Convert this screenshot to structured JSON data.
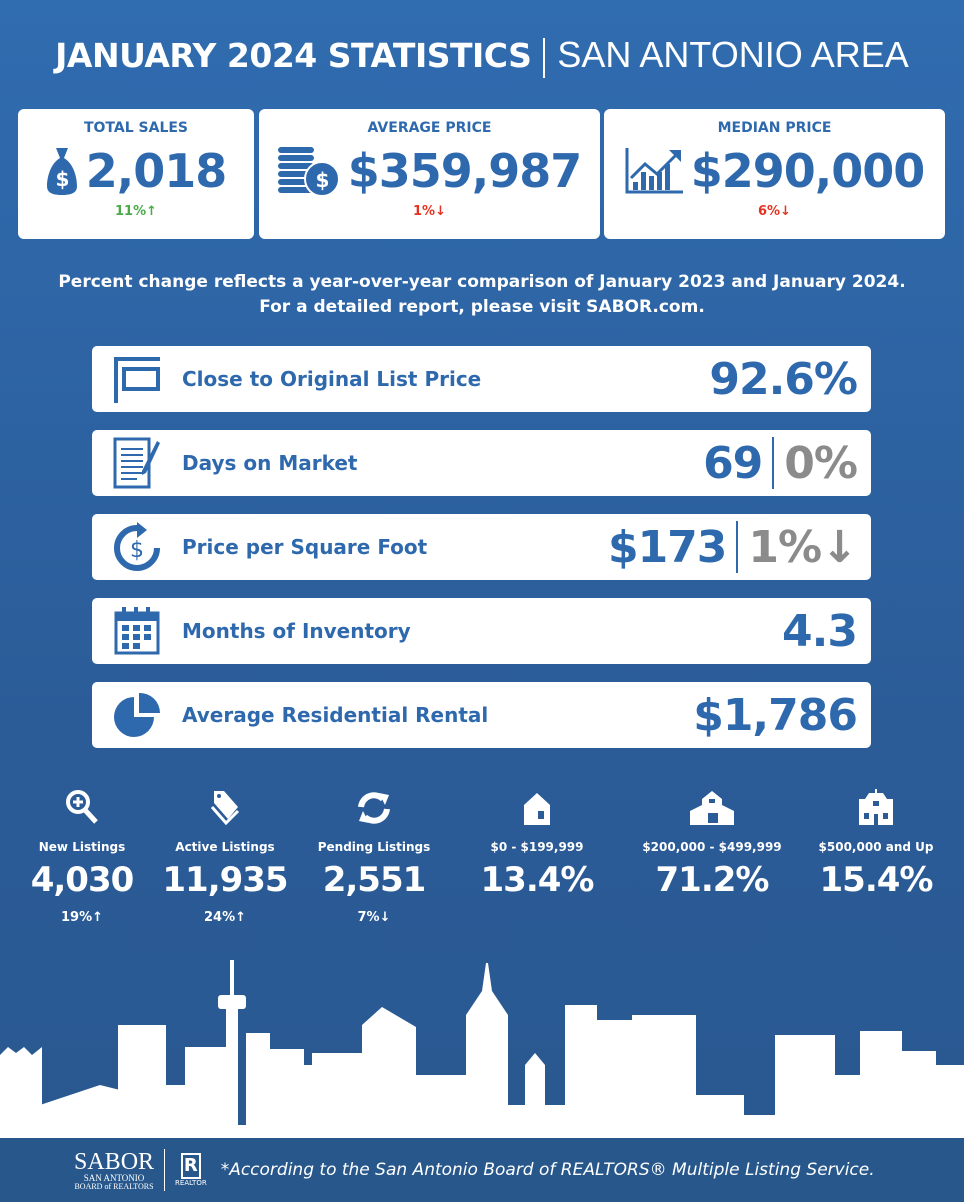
{
  "header": {
    "title": "JANUARY 2024 STATISTICS",
    "subtitle": "SAN ANTONIO AREA"
  },
  "cards": [
    {
      "label": "TOTAL SALES",
      "value": "2,018",
      "change": "11%↑",
      "direction": "up",
      "icon": "money-bag-icon"
    },
    {
      "label": "AVERAGE PRICE",
      "value": "$359,987",
      "change": "1%↓",
      "direction": "down",
      "icon": "coin-stack-icon"
    },
    {
      "label": "MEDIAN PRICE",
      "value": "$290,000",
      "change": "6%↓",
      "direction": "down",
      "icon": "growth-chart-icon"
    }
  ],
  "note": {
    "line1": "Percent change reflects a year-over-year comparison of January 2023 and January 2024.",
    "line2": "For a detailed report, please visit SABOR.com."
  },
  "metrics": [
    {
      "label": "Close to Original List Price",
      "value": "92.6%"
    },
    {
      "label": "Days on Market",
      "value": "69",
      "change": "0%"
    },
    {
      "label": "Price per Square Foot",
      "value": "$173",
      "change": "1%↓"
    },
    {
      "label": "Months of Inventory",
      "value": "4.3"
    },
    {
      "label": "Average Residential Rental",
      "value": "$1,786"
    }
  ],
  "stats": [
    {
      "label": "New Listings",
      "value": "4,030",
      "change": "19%↑"
    },
    {
      "label": "Active Listings",
      "value": "11,935",
      "change": "24%↑"
    },
    {
      "label": "Pending Listings",
      "value": "2,551",
      "change": "7%↓"
    },
    {
      "label": "$0 - $199,999",
      "value": "13.4%"
    },
    {
      "label": "$200,000 - $499,999",
      "value": "71.2%"
    },
    {
      "label": "$500,000 and Up",
      "value": "15.4%"
    }
  ],
  "footer": {
    "sabor_logo": "SABOR",
    "sabor_sub1": "SAN ANTONIO",
    "sabor_sub2": "BOARD of REALTORS",
    "realtor_logo": "REALTOR",
    "text": "*According to the San Antonio Board of REALTORS® Multiple Listing Service."
  },
  "colors": {
    "brand": "#2f69ad",
    "up": "#4caa4a",
    "down": "#e53323",
    "muted": "#8b8b8b"
  }
}
